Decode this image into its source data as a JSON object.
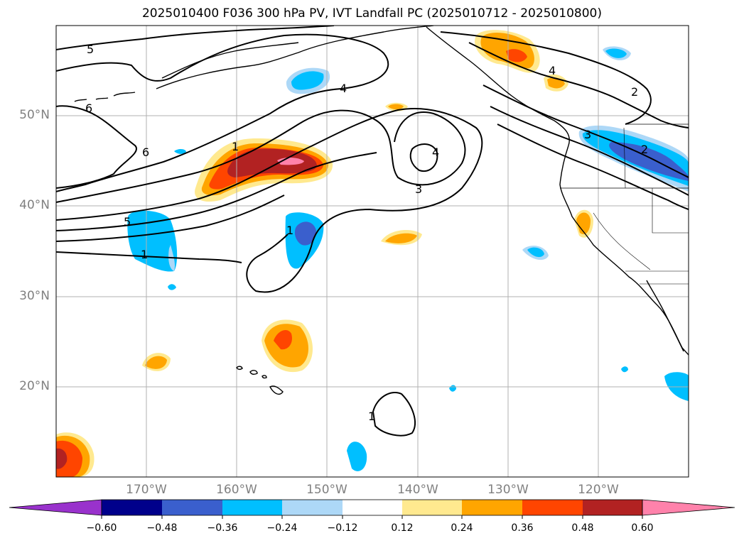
{
  "title": "2025010400 F036 300 hPa PV, IVT Landfall PC (2025010712 - 2025010800)",
  "lat_labels": [
    "50°N",
    "40°N",
    "30°N",
    "20°N"
  ],
  "lon_labels": [
    "170°W",
    "160°W",
    "150°W",
    "140°W",
    "130°W",
    "120°W"
  ],
  "contour_labels": [
    "5",
    "6",
    "6",
    "4",
    "1",
    "2",
    "3",
    "3",
    "4",
    "5",
    "1",
    "1",
    "1",
    "4",
    "2"
  ],
  "colorbar": {
    "ticks": [
      "−0.60",
      "−0.48",
      "−0.36",
      "−0.24",
      "−0.12",
      "0.12",
      "0.24",
      "0.36",
      "0.48",
      "0.60"
    ],
    "colors": [
      "#9932cc",
      "#00008b",
      "#3a5fcd",
      "#00bfff",
      "#add8f7",
      "#ffffff",
      "#ffe98f",
      "#ffa500",
      "#ff4500",
      "#b22222",
      "#ff82ab"
    ]
  }
}
